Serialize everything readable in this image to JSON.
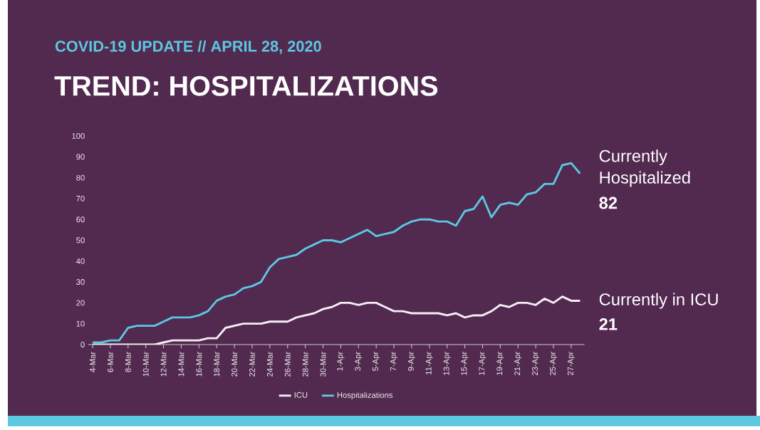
{
  "chart_data": {
    "type": "line",
    "title": "TREND: HOSPITALIZATIONS",
    "subtitle": "COVID-19 UPDATE // APRIL 28, 2020",
    "categories": [
      "4-Mar",
      null,
      "6-Mar",
      null,
      "8-Mar",
      null,
      "10-Mar",
      null,
      "12-Mar",
      null,
      "14-Mar",
      null,
      "16-Mar",
      null,
      "18-Mar",
      null,
      "20-Mar",
      null,
      "22-Mar",
      null,
      "24-Mar",
      null,
      "26-Mar",
      null,
      "28-Mar",
      null,
      "30-Mar",
      null,
      "1-Apr",
      null,
      "3-Apr",
      null,
      "5-Apr",
      null,
      "7-Apr",
      null,
      "9-Apr",
      null,
      "11-Apr",
      null,
      "13-Apr",
      null,
      "15-Apr",
      null,
      "17-Apr",
      null,
      "19-Apr",
      null,
      "21-Apr",
      null,
      "23-Apr",
      null,
      "25-Apr",
      null,
      "27-Apr",
      null
    ],
    "series": [
      {
        "name": "ICU",
        "color": "#f5eef5",
        "values": [
          0,
          0,
          0,
          0,
          0,
          0,
          0,
          0,
          1,
          2,
          2,
          2,
          2,
          3,
          3,
          8,
          9,
          10,
          10,
          10,
          11,
          11,
          11,
          13,
          14,
          15,
          17,
          18,
          20,
          20,
          19,
          20,
          20,
          18,
          16,
          16,
          15,
          15,
          15,
          15,
          14,
          15,
          13,
          14,
          14,
          16,
          19,
          18,
          20,
          20,
          19,
          22,
          20,
          23,
          21,
          21
        ]
      },
      {
        "name": "Hospitalizations",
        "color": "#5bc8e0",
        "values": [
          1,
          1,
          2,
          2,
          8,
          9,
          9,
          9,
          11,
          13,
          13,
          13,
          14,
          16,
          21,
          23,
          24,
          27,
          28,
          30,
          37,
          41,
          42,
          43,
          46,
          48,
          50,
          50,
          49,
          51,
          53,
          55,
          52,
          53,
          54,
          57,
          59,
          60,
          60,
          59,
          59,
          57,
          64,
          65,
          71,
          61,
          67,
          68,
          67,
          72,
          73,
          77,
          77,
          86,
          87,
          82
        ]
      }
    ],
    "ylim": [
      0,
      100
    ],
    "yticks": [
      0,
      10,
      20,
      30,
      40,
      50,
      60,
      70,
      80,
      90,
      100
    ],
    "legend": "bottom",
    "marker": "none",
    "line_style": "solid",
    "annotations": [
      "Currently Hospitalized",
      "82",
      "Currently in ICU",
      "21"
    ]
  }
}
